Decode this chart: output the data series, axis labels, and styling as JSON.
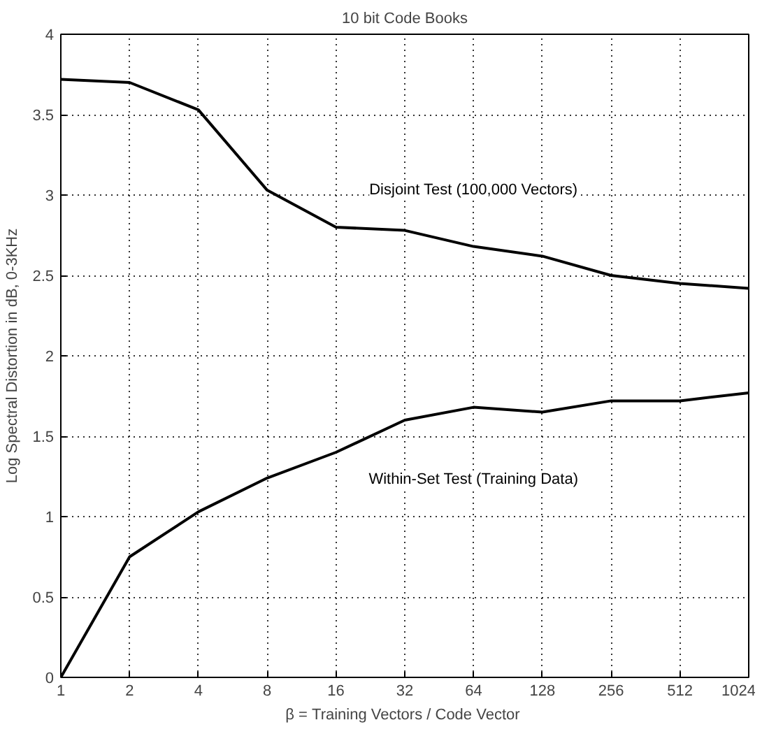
{
  "chart_data": {
    "type": "line",
    "title": "10 bit Code Books",
    "xlabel": "β =  Training Vectors / Code Vector",
    "ylabel": "Log Spectral Distortion in dB, 0-3KHz",
    "categories": [
      "1",
      "2",
      "4",
      "8",
      "16",
      "32",
      "64",
      "128",
      "256",
      "512",
      "1024"
    ],
    "series": [
      {
        "name": "Disjoint Test (100,000 Vectors)",
        "color": "#000000",
        "values": [
          3.72,
          3.7,
          3.53,
          3.03,
          2.8,
          2.78,
          2.68,
          2.62,
          2.5,
          2.45,
          2.42
        ]
      },
      {
        "name": "Within-Set Test (Training Data)",
        "color": "#000000",
        "values": [
          0,
          0.75,
          1.03,
          1.24,
          1.4,
          1.6,
          1.68,
          1.65,
          1.72,
          1.72,
          1.77
        ]
      }
    ],
    "ylim": [
      0,
      4
    ],
    "yticks": [
      0,
      0.5,
      1,
      1.5,
      2,
      2.5,
      3,
      3.5,
      4
    ],
    "grid": true,
    "legend": false,
    "marker": "none",
    "line_style": "solid"
  }
}
